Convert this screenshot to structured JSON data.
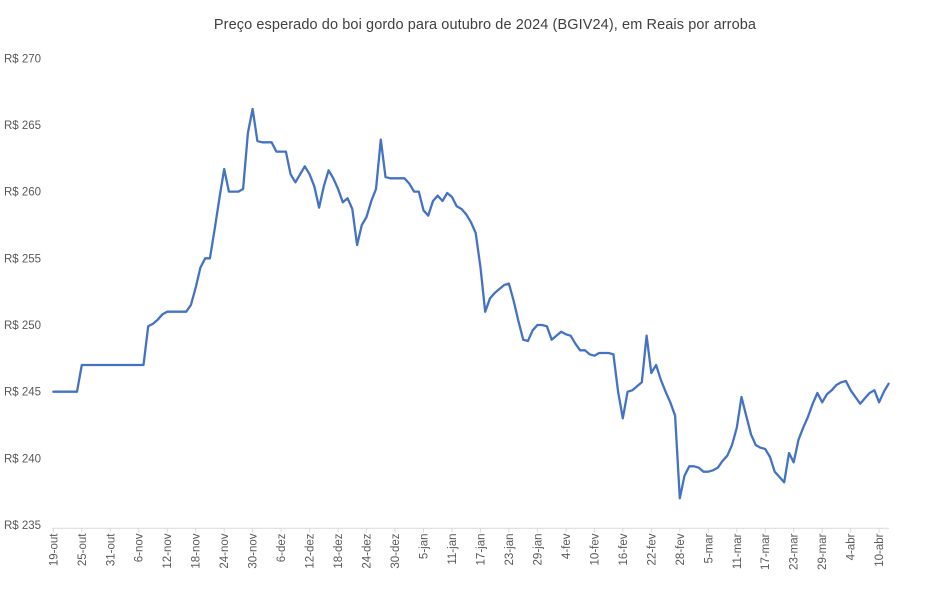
{
  "title": "Preço esperado do boi gordo para outubro de 2024 (BGIV24), em Reais por arroba",
  "chart_data": {
    "type": "line",
    "title": "Preço esperado do boi gordo para outubro de 2024 (BGIV24), em Reais por arroba",
    "xlabel": "",
    "ylabel": "",
    "y_min": 235,
    "y_max": 270,
    "y_step": 5,
    "y_prefix": "R$ ",
    "y_tick_labels": [
      "R$ 235",
      "R$ 240",
      "R$ 245",
      "R$ 250",
      "R$ 255",
      "R$ 260",
      "R$ 265",
      "R$ 270"
    ],
    "x_tick_interval": 6,
    "x_tick_labels": [
      "19-out",
      "25-out",
      "31-out",
      "6-nov",
      "12-nov",
      "18-nov",
      "24-nov",
      "30-nov",
      "6-dez",
      "12-dez",
      "18-dez",
      "24-dez",
      "30-dez",
      "5-jan",
      "11-jan",
      "17-jan",
      "23-jan",
      "29-jan",
      "4-fev",
      "10-fev",
      "16-fev",
      "22-fev",
      "28-fev",
      "5-mar",
      "11-mar",
      "17-mar",
      "23-mar",
      "29-mar",
      "4-abr",
      "10-abr"
    ],
    "grid": "none",
    "legend": "none",
    "background": "#ffffff",
    "axis_color": "#d9d9d9",
    "label_color": "#595959",
    "title_color": "#404040",
    "series": [
      {
        "name": "BGIV24",
        "color": "#4472c4",
        "values": [
          245,
          245,
          245,
          245,
          245,
          245,
          247,
          247,
          247,
          247,
          247,
          247,
          247,
          247,
          247,
          247,
          247,
          247,
          247,
          247,
          249.9,
          250.1,
          250.4,
          250.8,
          251,
          251,
          251,
          251,
          251,
          251.5,
          252.8,
          254.3,
          255,
          255,
          257.2,
          259.5,
          261.7,
          260,
          260,
          260,
          260.2,
          264.4,
          266.2,
          263.8,
          263.7,
          263.7,
          263.7,
          263,
          263,
          263,
          261.3,
          260.7,
          261.3,
          261.9,
          261.3,
          260.4,
          258.8,
          260.4,
          261.6,
          261,
          260.2,
          259.2,
          259.5,
          258.7,
          256,
          257.5,
          258.1,
          259.3,
          260.2,
          263.9,
          261.1,
          261,
          261,
          261,
          261,
          260.6,
          260,
          260,
          258.6,
          258.2,
          259.3,
          259.7,
          259.3,
          259.9,
          259.6,
          258.9,
          258.7,
          258.3,
          257.7,
          256.9,
          254.3,
          251,
          252,
          252.4,
          252.7,
          253,
          253.1,
          251.8,
          250.3,
          248.9,
          248.8,
          249.6,
          250,
          250,
          249.9,
          248.9,
          249.2,
          249.5,
          249.3,
          249.2,
          248.6,
          248.1,
          248.1,
          247.8,
          247.7,
          247.9,
          247.9,
          247.9,
          247.8,
          245,
          243,
          245,
          245.1,
          245.4,
          245.7,
          249.2,
          246.4,
          247,
          245.9,
          245,
          244.2,
          243.2,
          237,
          238.7,
          239.4,
          239.4,
          239.3,
          239,
          239,
          239.1,
          239.3,
          239.8,
          240.2,
          241,
          242.3,
          244.6,
          243.2,
          241.8,
          241,
          240.8,
          240.7,
          240.1,
          239,
          238.6,
          238.2,
          240.4,
          239.7,
          241.4,
          242.3,
          243.1,
          244.1,
          244.9,
          244.2,
          244.8,
          245.1,
          245.5,
          245.7,
          245.8,
          245.1,
          244.6,
          244.1,
          244.5,
          244.9,
          245.1,
          244.2,
          245,
          245.6
        ]
      }
    ]
  }
}
